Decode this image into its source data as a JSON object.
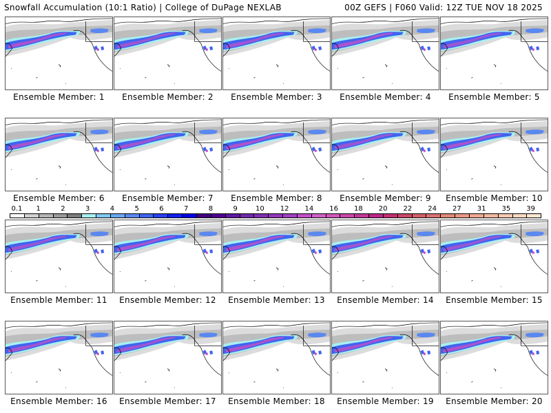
{
  "header": {
    "left": "Snowfall Accumulation (10:1 Ratio) | College of DuPage NEXLAB",
    "right": "00Z GEFS | F060 Valid: 12Z TUE NOV 18 2025"
  },
  "panels": [
    {
      "caption": "Ensemble Member: 1",
      "intensity": 0.8
    },
    {
      "caption": "Ensemble Member: 2",
      "intensity": 0.7
    },
    {
      "caption": "Ensemble Member: 3",
      "intensity": 0.75
    },
    {
      "caption": "Ensemble Member: 4",
      "intensity": 0.85
    },
    {
      "caption": "Ensemble Member: 5",
      "intensity": 0.7
    },
    {
      "caption": "Ensemble Member: 6",
      "intensity": 0.8
    },
    {
      "caption": "Ensemble Member: 7",
      "intensity": 0.75
    },
    {
      "caption": "Ensemble Member: 8",
      "intensity": 0.85
    },
    {
      "caption": "Ensemble Member: 9",
      "intensity": 0.7
    },
    {
      "caption": "Ensemble Member: 10",
      "intensity": 0.8
    },
    {
      "caption": "Ensemble Member: 11",
      "intensity": 0.7
    },
    {
      "caption": "Ensemble Member: 12",
      "intensity": 0.8
    },
    {
      "caption": "Ensemble Member: 13",
      "intensity": 0.85
    },
    {
      "caption": "Ensemble Member: 14",
      "intensity": 0.75
    },
    {
      "caption": "Ensemble Member: 15",
      "intensity": 0.7
    },
    {
      "caption": "Ensemble Member: 16",
      "intensity": 0.8
    },
    {
      "caption": "Ensemble Member: 17",
      "intensity": 0.75
    },
    {
      "caption": "Ensemble Member: 18",
      "intensity": 0.85
    },
    {
      "caption": "Ensemble Member: 19",
      "intensity": 0.8
    },
    {
      "caption": "Ensemble Member: 20",
      "intensity": 0.85
    }
  ],
  "colorbar": {
    "labels": [
      "0.1",
      "1",
      "2",
      "3",
      "4",
      "5",
      "6",
      "7",
      "8",
      "9",
      "10",
      "12",
      "14",
      "16",
      "18",
      "20",
      "22",
      "24",
      "27",
      "31",
      "35",
      "39"
    ],
    "colors": [
      "#ffffff",
      "#d0d0d0",
      "#b4b4b4",
      "#9a9a9a",
      "#7c7c7c",
      "#a8f0f0",
      "#80c8f0",
      "#6aa8f0",
      "#5a88f0",
      "#4064f0",
      "#2840f0",
      "#1020f0",
      "#0000e8",
      "#400080",
      "#500090",
      "#6018a0",
      "#7028a8",
      "#8030b0",
      "#9038b8",
      "#a040c0",
      "#c050c8",
      "#d060c8",
      "#d058b8",
      "#c848a8",
      "#c03898",
      "#b82888",
      "#c03070",
      "#c84868",
      "#d06068",
      "#d87070",
      "#e08878",
      "#e89888",
      "#f0a890",
      "#f0b8a0",
      "#f8c8b0",
      "#f8d8c0",
      "#fde8d0"
    ]
  }
}
